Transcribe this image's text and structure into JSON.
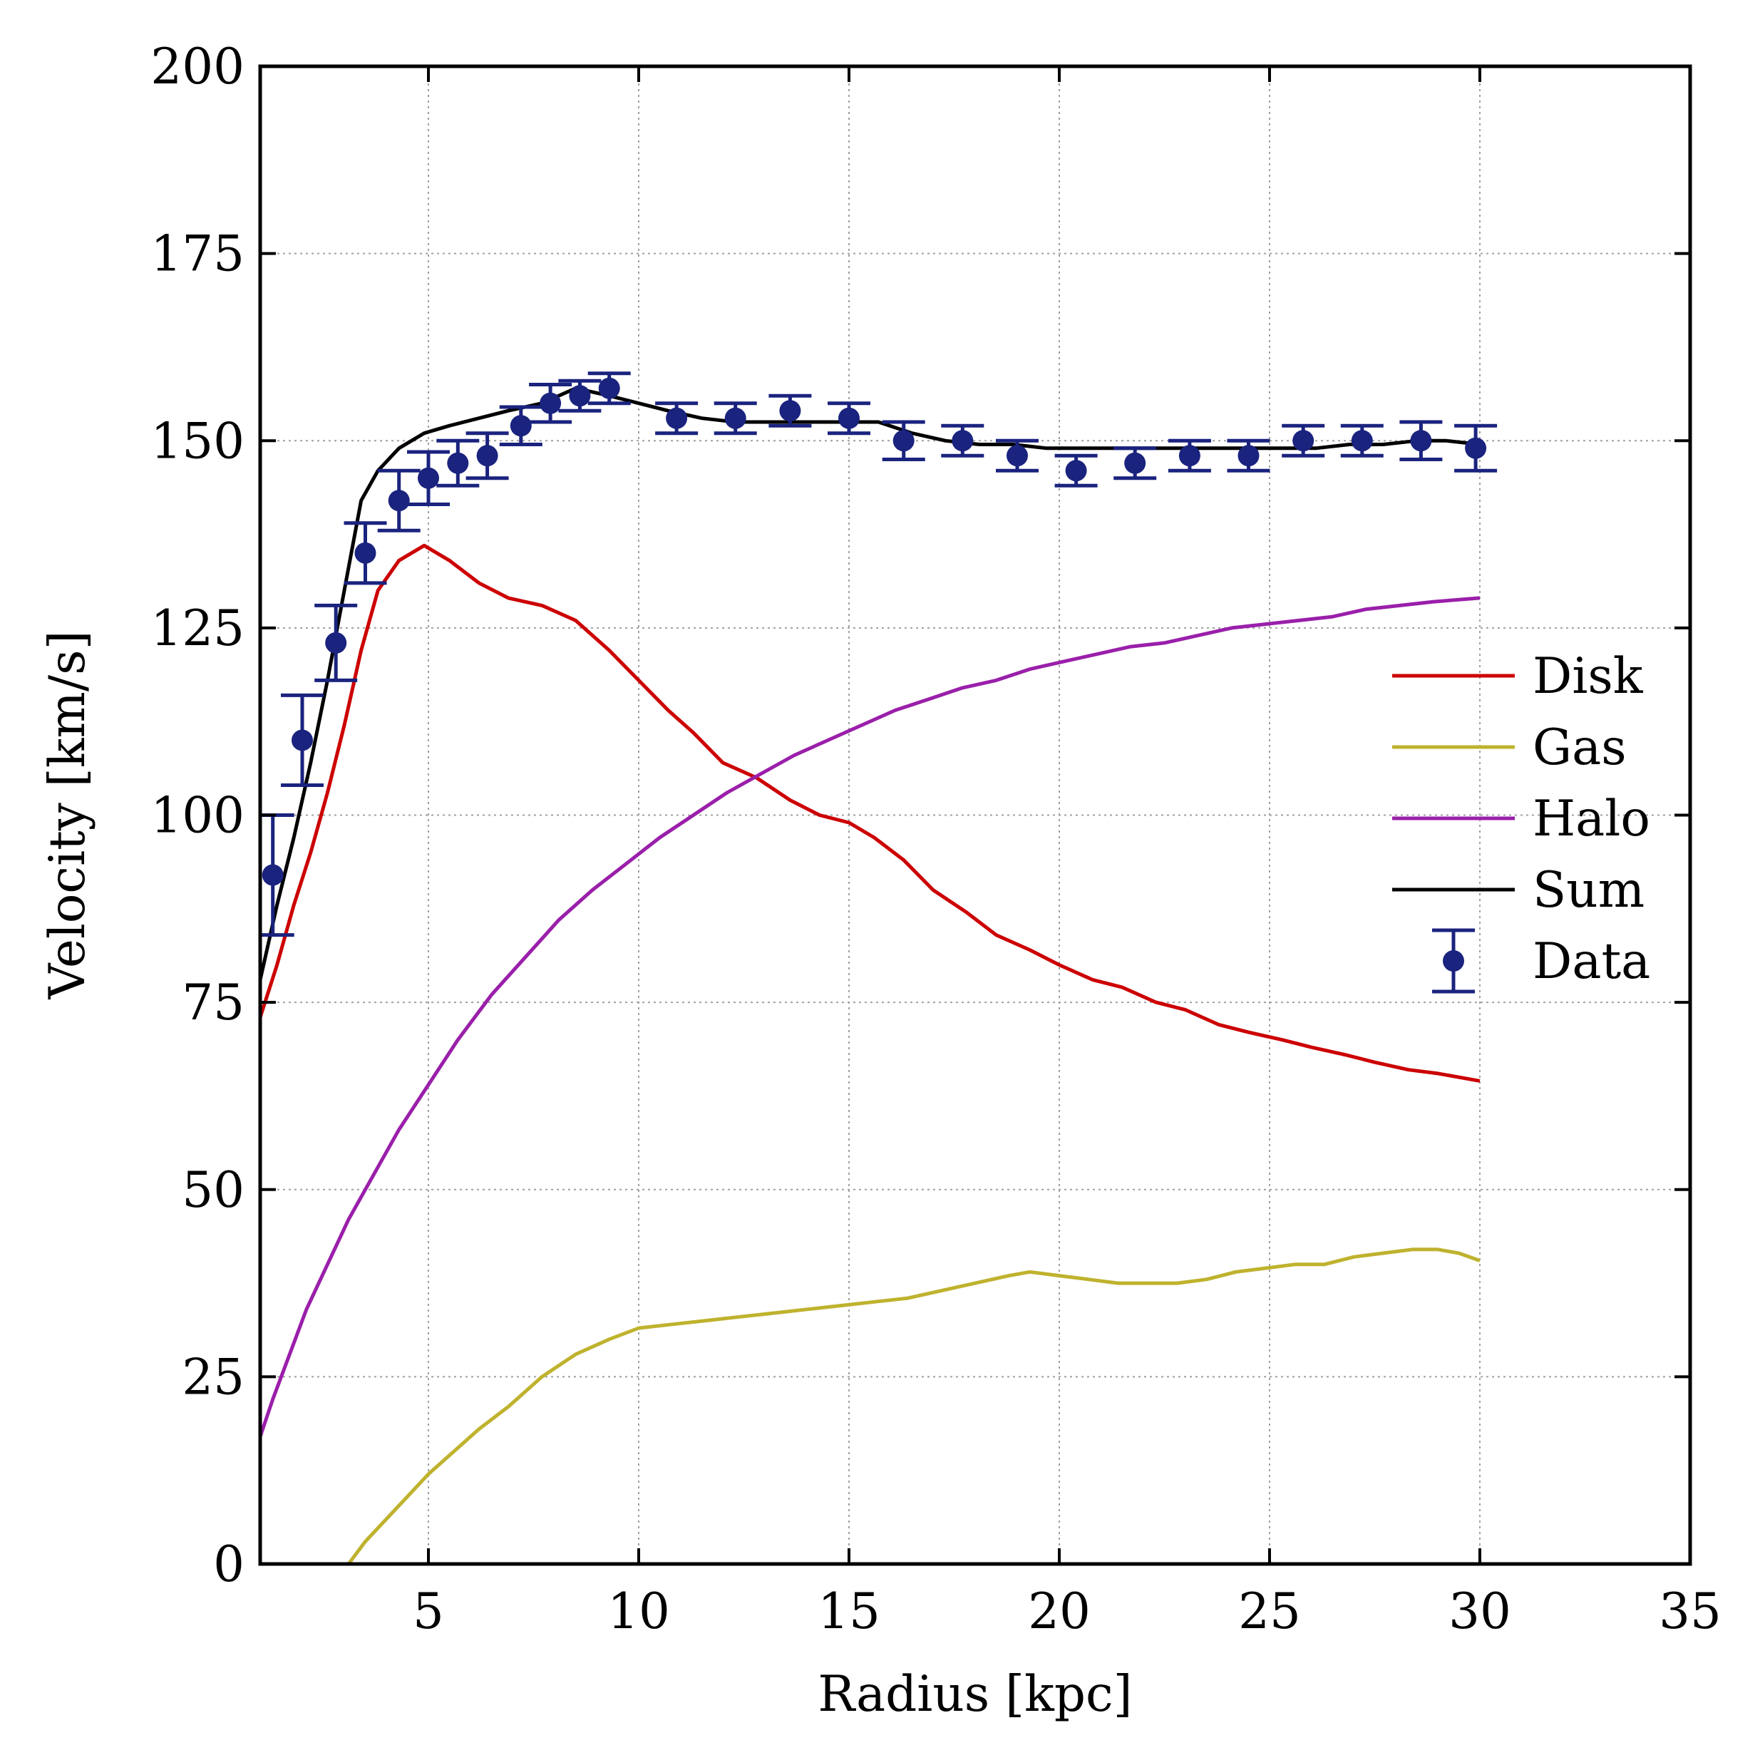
{
  "chart_data": {
    "type": "line",
    "xlabel": "Radius [kpc]",
    "ylabel": "Velocity [km/s]",
    "xlim": [
      1,
      35
    ],
    "ylim": [
      0,
      200
    ],
    "xticks": [
      5,
      10,
      15,
      20,
      25,
      30,
      35
    ],
    "yticks": [
      0,
      25,
      50,
      75,
      100,
      125,
      150,
      175,
      200
    ],
    "grid": true,
    "legend_position": "right",
    "series": [
      {
        "name": "Disk",
        "kind": "line",
        "color": "#cc0000",
        "x": [
          1,
          1.4,
          1.8,
          2.2,
          2.6,
          3.0,
          3.4,
          3.8,
          4.3,
          4.9,
          5.5,
          6.2,
          6.9,
          7.7,
          8.5,
          9.3,
          10.0,
          10.7,
          11.3,
          12.0,
          12.8,
          13.6,
          14.3,
          15.0,
          15.6,
          16.3,
          17.0,
          17.8,
          18.5,
          19.3,
          20.0,
          20.8,
          21.5,
          22.3,
          23.0,
          23.8,
          24.5,
          25.3,
          26.0,
          26.8,
          27.5,
          28.3,
          29.0,
          30.0
        ],
        "y": [
          73,
          80,
          88,
          95,
          103,
          112,
          122,
          130,
          134,
          136,
          134,
          131,
          129,
          128,
          126,
          122,
          118,
          114,
          111,
          107,
          105,
          102,
          100,
          99,
          97,
          94,
          90,
          87,
          84,
          82,
          80,
          78,
          77,
          75,
          74,
          72,
          71,
          70,
          69,
          68,
          67,
          66,
          65.5,
          64.5
        ]
      },
      {
        "name": "Gas",
        "kind": "line",
        "color": "#bfb22e",
        "x": [
          3.1,
          3.5,
          4.0,
          4.5,
          5.0,
          5.6,
          6.2,
          6.9,
          7.7,
          8.5,
          9.3,
          10.0,
          10.8,
          11.6,
          12.4,
          13.2,
          14.0,
          14.8,
          15.6,
          16.4,
          17.2,
          18.0,
          18.8,
          19.3,
          20.0,
          20.7,
          21.4,
          22.1,
          22.8,
          23.5,
          24.2,
          24.9,
          25.6,
          26.3,
          27.0,
          27.7,
          28.4,
          29.0,
          29.5,
          30.0
        ],
        "y": [
          0,
          3,
          6,
          9,
          12,
          15,
          18,
          21,
          25,
          28,
          30,
          31.5,
          32,
          32.5,
          33,
          33.5,
          34,
          34.5,
          35,
          35.5,
          36.5,
          37.5,
          38.5,
          39,
          38.5,
          38,
          37.5,
          37.5,
          37.5,
          38,
          39,
          39.5,
          40,
          40,
          41,
          41.5,
          42,
          42,
          41.5,
          40.5
        ]
      },
      {
        "name": "Halo",
        "kind": "line",
        "color": "#9a1faa",
        "x": [
          1,
          1.3,
          1.7,
          2.1,
          2.6,
          3.1,
          3.7,
          4.3,
          5.0,
          5.7,
          6.5,
          7.3,
          8.1,
          8.9,
          9.7,
          10.5,
          11.3,
          12.1,
          12.9,
          13.7,
          14.5,
          15.3,
          16.1,
          16.9,
          17.7,
          18.5,
          19.3,
          20.1,
          20.9,
          21.7,
          22.5,
          23.3,
          24.1,
          24.9,
          25.7,
          26.5,
          27.3,
          28.1,
          28.9,
          30.0
        ],
        "y": [
          17,
          22,
          28,
          34,
          40,
          46,
          52,
          58,
          64,
          70,
          76,
          81,
          86,
          90,
          93.5,
          97,
          100,
          103,
          105.5,
          108,
          110,
          112,
          114,
          115.5,
          117,
          118,
          119.5,
          120.5,
          121.5,
          122.5,
          123,
          124,
          125,
          125.5,
          126,
          126.5,
          127.5,
          128,
          128.5,
          129
        ]
      },
      {
        "name": "Sum",
        "kind": "line",
        "color": "#000000",
        "x": [
          1,
          1.4,
          1.8,
          2.2,
          2.6,
          3.0,
          3.4,
          3.8,
          4.3,
          4.9,
          5.5,
          6.2,
          6.9,
          7.7,
          8.5,
          9.3,
          10.0,
          10.7,
          11.5,
          12.3,
          13.0,
          13.7,
          14.4,
          15.0,
          15.7,
          16.5,
          17.3,
          18.1,
          18.9,
          19.7,
          20.5,
          21.3,
          22.1,
          22.9,
          23.7,
          24.5,
          25.3,
          26.1,
          26.9,
          27.7,
          28.5,
          29.2,
          30.0
        ],
        "y": [
          78,
          88,
          97,
          107,
          118,
          130,
          142,
          146,
          149,
          151,
          152,
          153,
          154,
          155,
          157,
          156,
          155,
          154,
          153,
          152.5,
          152.5,
          152.5,
          152.5,
          152.5,
          152.5,
          151,
          150,
          149.5,
          149.5,
          149,
          149,
          149,
          149,
          149,
          149,
          149,
          149,
          149,
          149.5,
          149.5,
          150,
          150,
          149.5
        ]
      },
      {
        "name": "Data",
        "kind": "errorbar",
        "color": "#1a237e",
        "x": [
          1.3,
          2.0,
          2.8,
          3.5,
          4.3,
          5.0,
          5.7,
          6.4,
          7.2,
          7.9,
          8.6,
          9.3,
          10.9,
          12.3,
          13.6,
          15.0,
          16.3,
          17.7,
          19.0,
          20.4,
          21.8,
          23.1,
          24.5,
          25.8,
          27.2,
          28.6,
          29.9
        ],
        "y": [
          92,
          110,
          123,
          135,
          142,
          145,
          147,
          148,
          152,
          155,
          156,
          157,
          153,
          153,
          154,
          153,
          150,
          150,
          148,
          146,
          147,
          148,
          148,
          150,
          150,
          150,
          149
        ],
        "yerr": [
          8,
          6,
          5,
          4,
          4,
          3.5,
          3,
          3,
          2.5,
          2.5,
          2,
          2,
          2,
          2,
          2,
          2,
          2.5,
          2,
          2,
          2,
          2,
          2,
          2,
          2,
          2,
          2.5,
          3
        ]
      }
    ]
  }
}
